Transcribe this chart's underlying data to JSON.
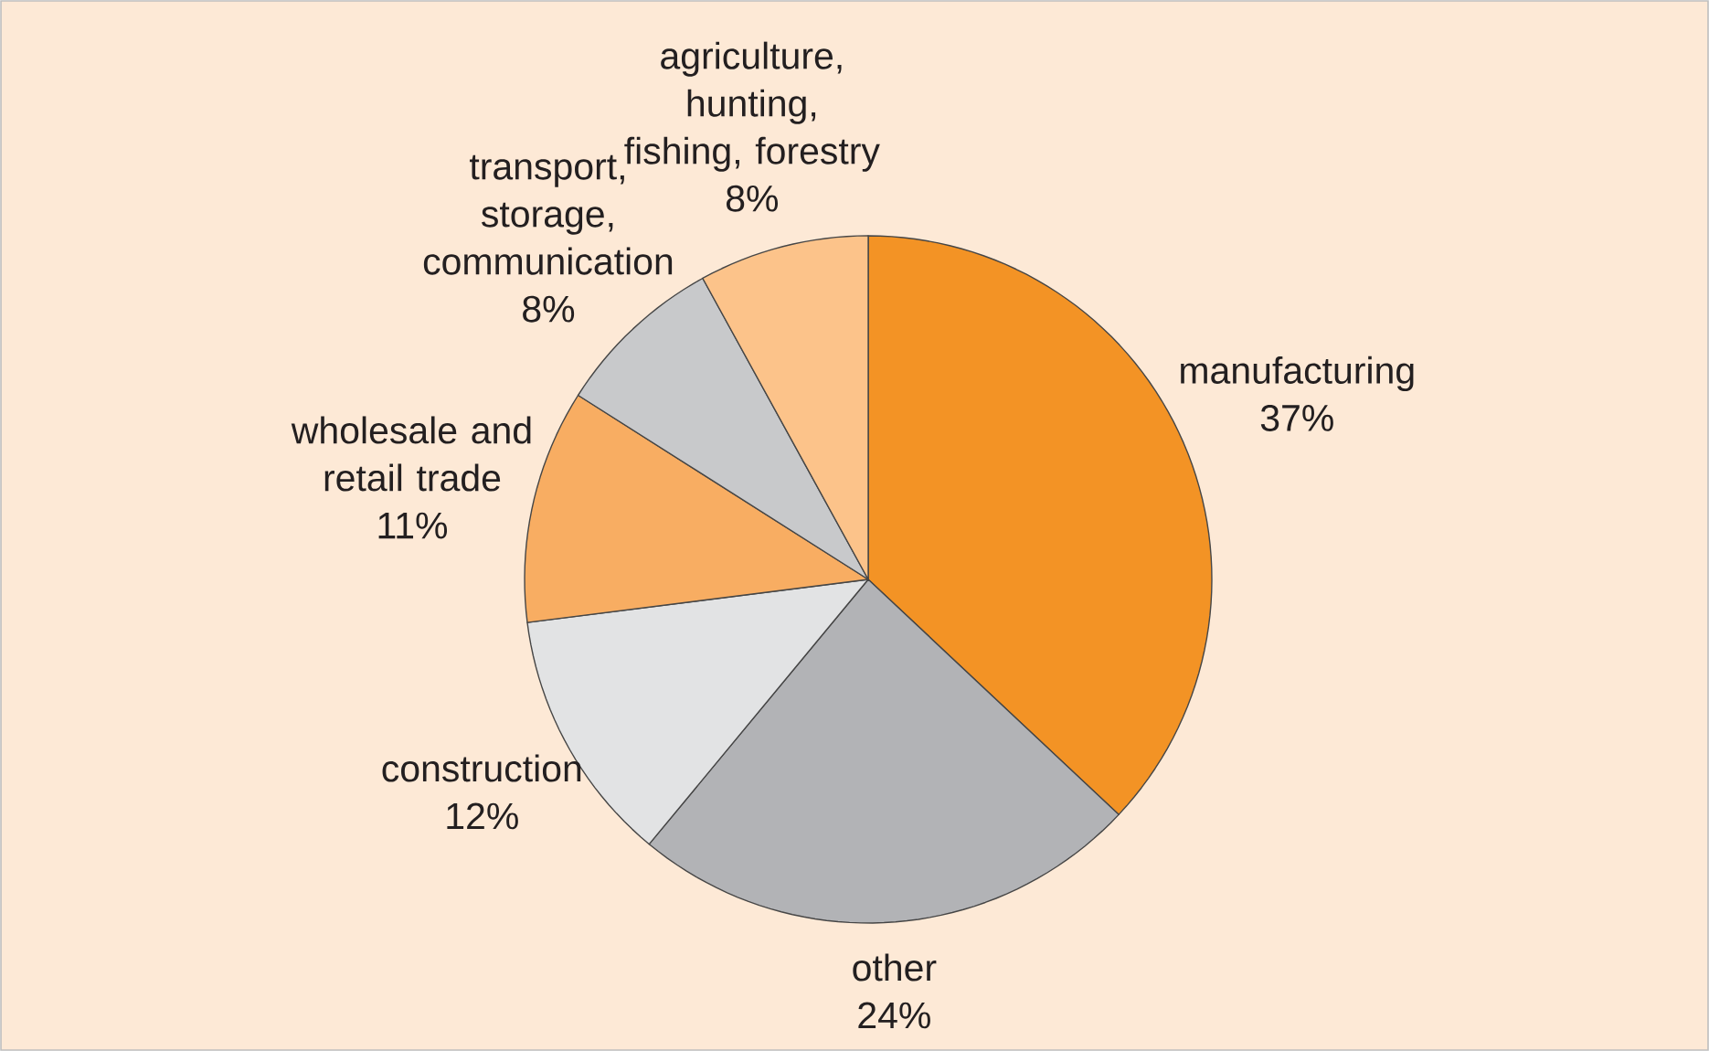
{
  "chart_data": {
    "type": "pie",
    "categories": [
      "manufacturing",
      "other",
      "construction",
      "wholesale and retail trade",
      "transport, storage, communication",
      "agriculture, hunting, fishing, forestry"
    ],
    "values": [
      37,
      24,
      12,
      11,
      8,
      8
    ],
    "value_labels": [
      "37%",
      "24%",
      "12%",
      "11%",
      "8%",
      "8%"
    ],
    "colors": [
      "#f39325",
      "#b2b3b6",
      "#e2e3e4",
      "#f8ad62",
      "#c8c9cb",
      "#fcc38a"
    ]
  }
}
